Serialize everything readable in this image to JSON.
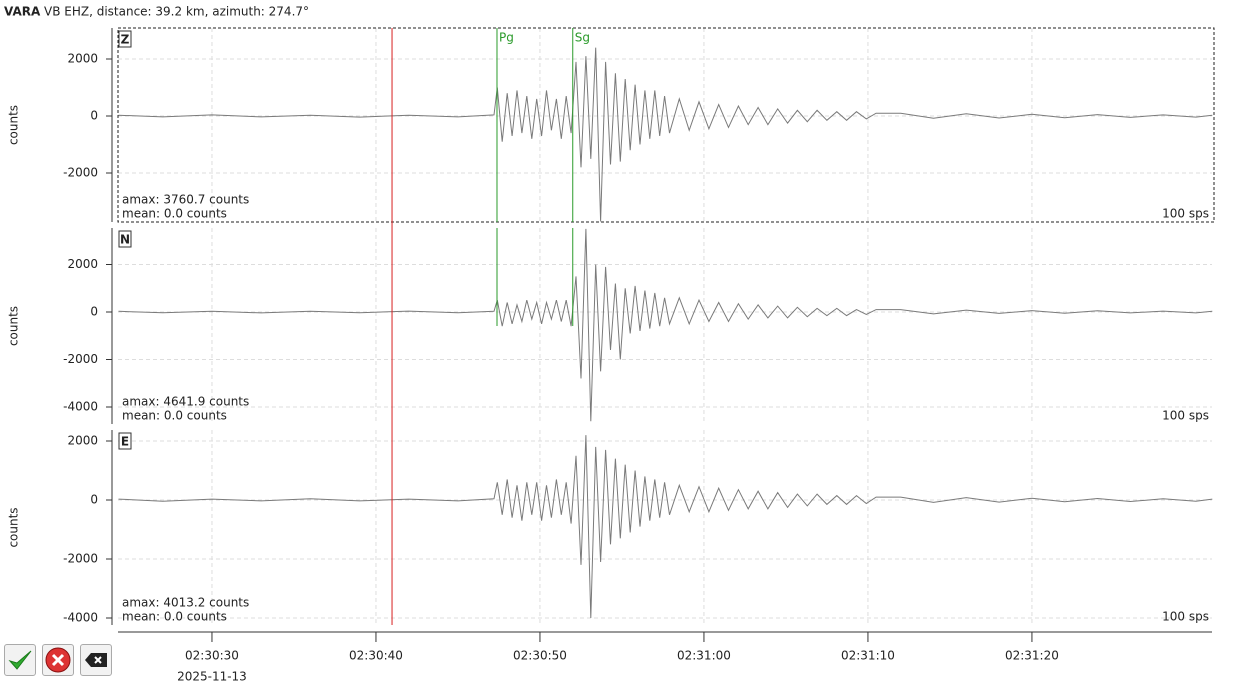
{
  "header": {
    "station": "VARA",
    "info": "VB  EHZ, distance: 39.2 km, azimuth: 274.7°"
  },
  "time_axis": {
    "xlim": [
      24.27,
      90.98
    ],
    "xticks": [
      {
        "value": 30,
        "label": "02:30:30"
      },
      {
        "value": 40,
        "label": "02:30:40"
      },
      {
        "value": 50,
        "label": "02:30:50"
      },
      {
        "value": 60,
        "label": "02:31:00"
      },
      {
        "value": 70,
        "label": "02:31:10"
      },
      {
        "value": 80,
        "label": "02:31:20"
      }
    ],
    "date": "2025-11-13"
  },
  "marker": {
    "x": 40.98,
    "color": "#d62020"
  },
  "picks": [
    {
      "label": "Pg",
      "x": 47.38,
      "color": "#2a9a2a"
    },
    {
      "label": "Sg",
      "x": 52.0,
      "color": "#2a9a2a"
    }
  ],
  "chart_data": [
    {
      "type": "line",
      "label": "Z",
      "ylabel": "counts",
      "ylim": [
        -3719,
        3088
      ],
      "yticks": [
        -2000,
        0,
        2000
      ],
      "grid": true,
      "annotations": [
        "amax: 3760.7 counts",
        "mean: 0.0 counts"
      ],
      "rate": "100 sps",
      "x": [
        24.3,
        27,
        30,
        33,
        36,
        39,
        42,
        45,
        47.2,
        47.4,
        47.7,
        48.0,
        48.3,
        48.6,
        48.9,
        49.2,
        49.5,
        49.8,
        50.1,
        50.4,
        50.7,
        51.0,
        51.3,
        51.6,
        51.9,
        52.2,
        52.5,
        52.8,
        53.1,
        53.4,
        53.7,
        54.0,
        54.3,
        54.6,
        54.9,
        55.2,
        55.5,
        55.8,
        56.1,
        56.4,
        56.7,
        57.0,
        57.3,
        57.6,
        57.9,
        58.5,
        59.1,
        59.7,
        60.3,
        60.9,
        61.5,
        62.1,
        62.7,
        63.3,
        63.9,
        64.5,
        65.1,
        65.7,
        66.3,
        66.9,
        67.5,
        68.1,
        68.7,
        69.3,
        69.9,
        70.5,
        72,
        74,
        76,
        78,
        80,
        82,
        84,
        86,
        88,
        90,
        91
      ],
      "series": [
        {
          "color": "#7a7a7a",
          "values": [
            30,
            -30,
            40,
            -30,
            30,
            -40,
            30,
            -30,
            40,
            1000,
            -900,
            800,
            -700,
            900,
            -600,
            700,
            -800,
            600,
            -700,
            900,
            -500,
            600,
            -800,
            700,
            -600,
            1900,
            -1800,
            2100,
            -1500,
            2400,
            -3700,
            1900,
            -1700,
            1500,
            -1600,
            1300,
            -1200,
            1100,
            -1000,
            900,
            -800,
            900,
            -700,
            700,
            -600,
            600,
            -500,
            500,
            -450,
            400,
            -400,
            350,
            -300,
            300,
            -300,
            250,
            -250,
            200,
            -200,
            200,
            -150,
            150,
            -150,
            150,
            -100,
            100,
            100,
            -80,
            80,
            -70,
            60,
            -60,
            50,
            -50,
            40,
            -40,
            30
          ]
        }
      ]
    },
    {
      "type": "line",
      "label": "N",
      "ylabel": "counts",
      "ylim": [
        -4716,
        3537
      ],
      "yticks": [
        -4000,
        -2000,
        0,
        2000
      ],
      "grid": true,
      "annotations": [
        "amax: 4641.9 counts",
        "mean: 0.0 counts"
      ],
      "rate": "100 sps",
      "x": [
        24.3,
        27,
        30,
        33,
        36,
        39,
        42,
        45,
        47.2,
        47.4,
        47.7,
        48.0,
        48.3,
        48.6,
        48.9,
        49.2,
        49.5,
        49.8,
        50.1,
        50.4,
        50.7,
        51.0,
        51.3,
        51.6,
        51.9,
        52.2,
        52.5,
        52.8,
        53.1,
        53.4,
        53.7,
        54.0,
        54.3,
        54.6,
        54.9,
        55.2,
        55.5,
        55.8,
        56.1,
        56.4,
        56.7,
        57.0,
        57.3,
        57.6,
        57.9,
        58.5,
        59.1,
        59.7,
        60.3,
        60.9,
        61.5,
        62.1,
        62.7,
        63.3,
        63.9,
        64.5,
        65.1,
        65.7,
        66.3,
        66.9,
        67.5,
        68.1,
        68.7,
        69.3,
        69.9,
        70.5,
        72,
        74,
        76,
        78,
        80,
        82,
        84,
        86,
        88,
        90,
        91
      ],
      "series": [
        {
          "color": "#7a7a7a",
          "values": [
            30,
            -30,
            30,
            -40,
            30,
            -30,
            40,
            -30,
            30,
            500,
            -600,
            400,
            -500,
            300,
            -400,
            500,
            -300,
            400,
            -500,
            400,
            -300,
            500,
            -400,
            500,
            -600,
            1500,
            -2800,
            3500,
            -4600,
            2000,
            -2500,
            1900,
            -1600,
            1200,
            -2000,
            1000,
            -900,
            1100,
            -800,
            900,
            -700,
            800,
            -600,
            600,
            -500,
            600,
            -500,
            500,
            -400,
            400,
            -400,
            350,
            -300,
            300,
            -250,
            250,
            -250,
            200,
            -200,
            150,
            -150,
            150,
            -150,
            100,
            -100,
            100,
            100,
            -80,
            80,
            -60,
            60,
            -50,
            50,
            -40,
            40,
            -40,
            30
          ]
        }
      ]
    },
    {
      "type": "line",
      "label": "E",
      "ylabel": "counts",
      "ylim": [
        -4237,
        2373
      ],
      "yticks": [
        -4000,
        -2000,
        0,
        2000
      ],
      "grid": true,
      "annotations": [
        "amax: 4013.2 counts",
        "mean: 0.0 counts"
      ],
      "rate": "100 sps",
      "x": [
        24.3,
        27,
        30,
        33,
        36,
        39,
        42,
        45,
        47.2,
        47.4,
        47.7,
        48.0,
        48.3,
        48.6,
        48.9,
        49.2,
        49.5,
        49.8,
        50.1,
        50.4,
        50.7,
        51.0,
        51.3,
        51.6,
        51.9,
        52.2,
        52.5,
        52.8,
        53.1,
        53.4,
        53.7,
        54.0,
        54.3,
        54.6,
        54.9,
        55.2,
        55.5,
        55.8,
        56.1,
        56.4,
        56.7,
        57.0,
        57.3,
        57.6,
        57.9,
        58.5,
        59.1,
        59.7,
        60.3,
        60.9,
        61.5,
        62.1,
        62.7,
        63.3,
        63.9,
        64.5,
        65.1,
        65.7,
        66.3,
        66.9,
        67.5,
        68.1,
        68.7,
        69.3,
        69.9,
        70.5,
        72,
        74,
        76,
        78,
        80,
        82,
        84,
        86,
        88,
        90,
        91
      ],
      "series": [
        {
          "color": "#7a7a7a",
          "values": [
            30,
            -40,
            30,
            -30,
            40,
            -30,
            30,
            -30,
            40,
            600,
            -500,
            700,
            -600,
            500,
            -700,
            600,
            -500,
            600,
            -700,
            500,
            -600,
            700,
            -500,
            600,
            -800,
            1500,
            -2200,
            2200,
            -4000,
            1800,
            -2100,
            1700,
            -1500,
            1400,
            -1300,
            1200,
            -1100,
            1000,
            -900,
            800,
            -700,
            700,
            -600,
            600,
            -500,
            500,
            -400,
            450,
            -400,
            400,
            -350,
            350,
            -300,
            300,
            -300,
            250,
            -250,
            200,
            -200,
            200,
            -150,
            150,
            -150,
            150,
            -120,
            100,
            100,
            -80,
            80,
            -70,
            60,
            -60,
            50,
            -50,
            40,
            -40,
            30
          ]
        }
      ]
    }
  ]
}
